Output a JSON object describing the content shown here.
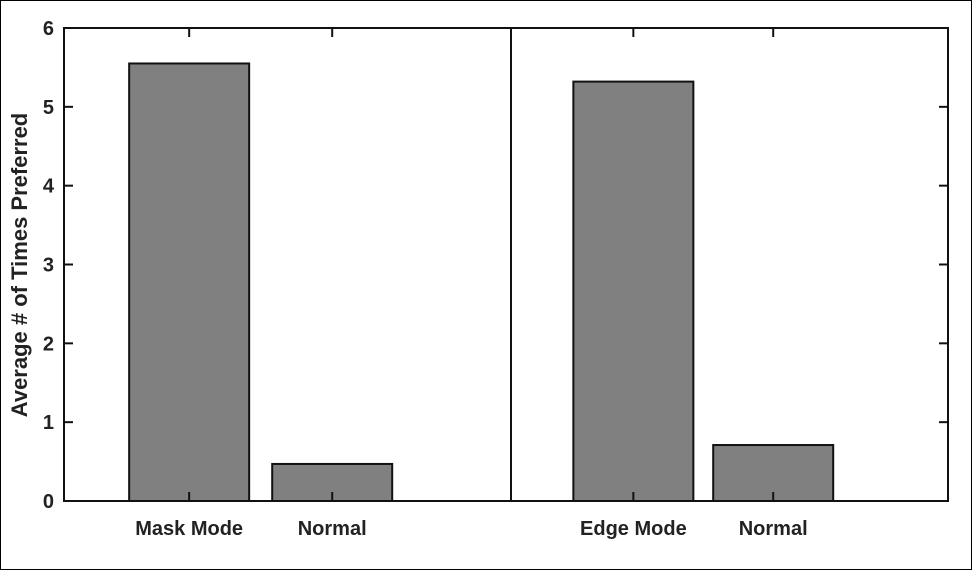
{
  "chart_data": {
    "type": "bar",
    "groups": [
      {
        "categories": [
          "Mask Mode",
          "Normal"
        ],
        "values": [
          5.55,
          0.47
        ]
      },
      {
        "categories": [
          "Edge Mode",
          "Normal"
        ],
        "values": [
          5.32,
          0.71
        ]
      }
    ],
    "ylabel": "Average # of Times Preferred",
    "ylim": [
      0,
      6
    ],
    "yticks": [
      "0",
      "1",
      "2",
      "3",
      "4",
      "5",
      "6"
    ],
    "grid": false,
    "bar_color": "#808080",
    "divider_between_groups": true
  }
}
